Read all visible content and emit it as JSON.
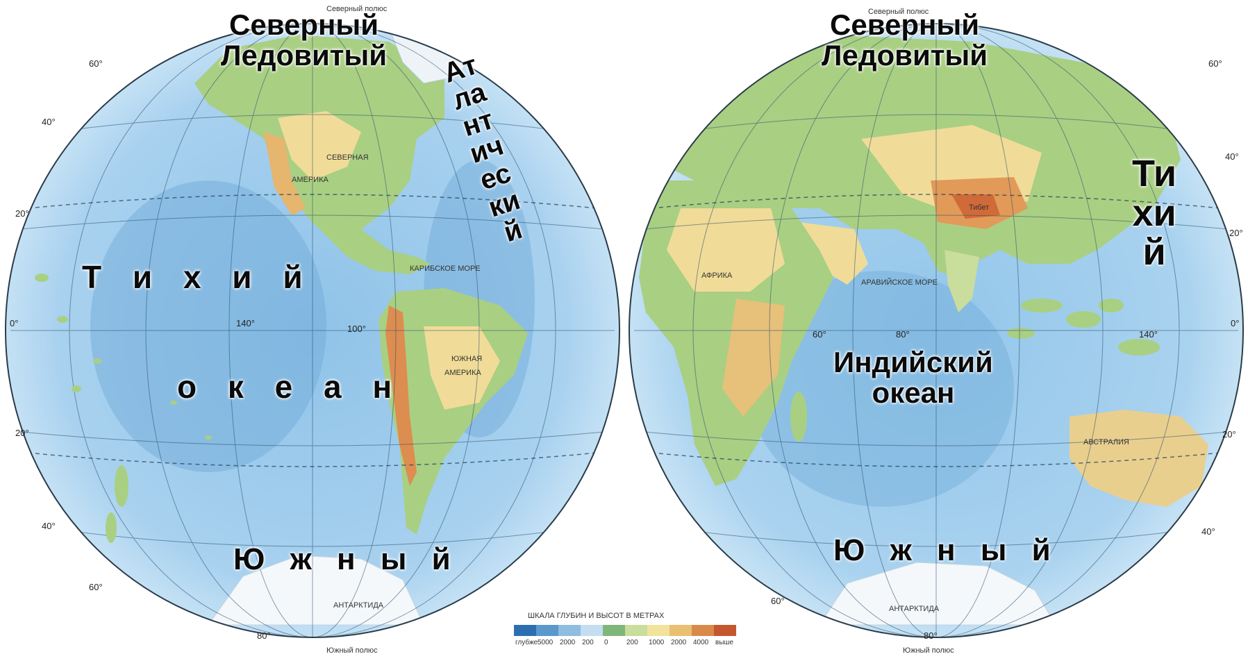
{
  "labels": {
    "north_left": "Северный\nЛедовитый",
    "north_right": "Северный\nЛедовитый",
    "atlantic": "Ат\nла\nнт\nич\nес\nки\nй",
    "pacific_left_1": "Т и х и й",
    "pacific_left_2": "о к е а н",
    "pacific_right": "Ти\nхи\nй",
    "indian": "Индийский\nокеан",
    "south_left": "Ю ж н ы й",
    "south_right": "Ю ж н ы й"
  },
  "legend": {
    "title": "ШКАЛА ГЛУБИН И ВЫСОТ В МЕТРАХ",
    "ticks": [
      "глубже",
      "5000",
      "2000",
      "200",
      "0",
      "200",
      "1000",
      "2000",
      "4000",
      "выше"
    ],
    "colors": [
      "#2c6fb0",
      "#5b98cc",
      "#8fbde0",
      "#c3def0",
      "#7fb77a",
      "#c9dd9c",
      "#f1e39c",
      "#e9bf72",
      "#d98a4a",
      "#c4572e"
    ]
  },
  "map_text": {
    "top_pole": "Северный полюс",
    "bottom_pole": "Южный полюс",
    "left_latitudes": [
      "60°",
      "40°",
      "20°",
      "0°",
      "20°",
      "40°",
      "60°",
      "80°"
    ],
    "right_latitudes": [
      "60°",
      "40°",
      "20°",
      "0°",
      "20°",
      "40°",
      "60°",
      "80°"
    ],
    "left_longitudes": [
      "140°",
      "100°"
    ],
    "right_longitudes": [
      "60°",
      "80°",
      "140°"
    ],
    "continents_left": [
      "СЕВЕРНАЯ",
      "АМЕРИКА",
      "ЮЖНАЯ",
      "АМЕРИКА",
      "АНТАРКТИДА"
    ],
    "continents_right": [
      "АФРИКА",
      "АВСТРАЛИЯ",
      "АНТАРКТИДА"
    ],
    "seas": [
      "АРАВИЙСКОЕ МОРЕ",
      "КАРИБСКОЕ МОРЕ"
    ],
    "mountains": [
      "Тибет"
    ]
  },
  "colors": {
    "ocean_light": "#cfe6f6",
    "ocean_mid": "#8fc3e8",
    "ocean_deep": "#5f9fd3",
    "land_low": "#9cc97c",
    "land_mid": "#f0df9a",
    "land_high": "#e2a25c",
    "ice": "#f5f8fb"
  }
}
